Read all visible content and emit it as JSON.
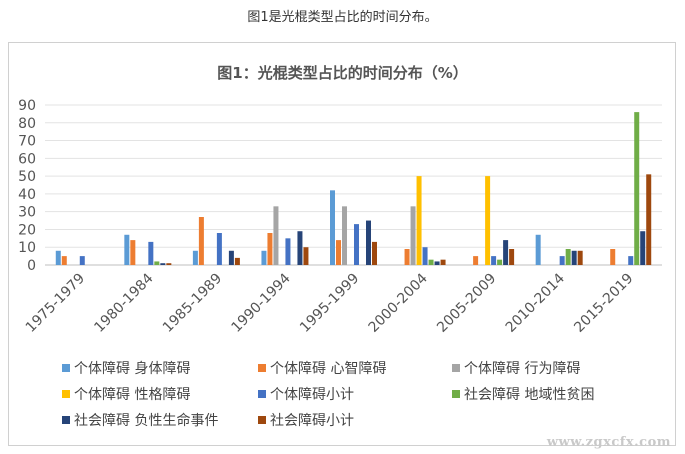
{
  "caption": "图1是光棍类型占比的时间分布。",
  "watermark": "www.zgxcfx.com",
  "chart_data": {
    "type": "bar",
    "title": "图1：光棍类型占比的时间分布（%）",
    "categories": [
      "1975-1979",
      "1980-1984",
      "1985-1989",
      "1990-1994",
      "1995-1999",
      "2000-2004",
      "2005-2009",
      "2010-2014",
      "2015-2019"
    ],
    "ylim": [
      0,
      90
    ],
    "yticks": [
      0,
      10,
      20,
      30,
      40,
      50,
      60,
      70,
      80,
      90
    ],
    "grid": true,
    "legend_position": "bottom",
    "series": [
      {
        "name": "个体障碍 身体障碍",
        "color": "#5b9bd5",
        "values": [
          8,
          17,
          8,
          8,
          42,
          0,
          0,
          17,
          0
        ]
      },
      {
        "name": "个体障碍 心智障碍",
        "color": "#ed7d31",
        "values": [
          5,
          14,
          27,
          18,
          14,
          9,
          5,
          0,
          9
        ]
      },
      {
        "name": "个体障碍 行为障碍",
        "color": "#a5a5a5",
        "values": [
          0,
          0,
          0,
          33,
          33,
          33,
          0,
          0,
          0
        ]
      },
      {
        "name": "个体障碍 性格障碍",
        "color": "#ffc000",
        "values": [
          0,
          0,
          0,
          0,
          0,
          50,
          50,
          0,
          0
        ]
      },
      {
        "name": "个体障碍小计",
        "color": "#4472c4",
        "values": [
          5,
          13,
          18,
          15,
          23,
          10,
          5,
          5,
          5
        ]
      },
      {
        "name": "社会障碍 地域性贫困",
        "color": "#70ad47",
        "values": [
          0,
          2,
          0,
          0,
          0,
          3,
          3,
          9,
          86
        ]
      },
      {
        "name": "社会障碍 负性生命事件",
        "color": "#264478",
        "values": [
          0,
          1,
          8,
          19,
          25,
          2,
          14,
          8,
          19
        ]
      },
      {
        "name": "社会障碍小计",
        "color": "#9e480e",
        "values": [
          0,
          1,
          4,
          10,
          13,
          3,
          9,
          8,
          51
        ]
      }
    ]
  }
}
